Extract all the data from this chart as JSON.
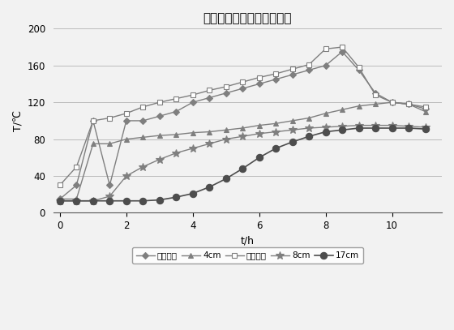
{
  "title": "花旗松不同位置的温度变化",
  "xlabel": "t/h",
  "ylabel": "T/℃",
  "xlim": [
    -0.2,
    11.5
  ],
  "ylim": [
    0,
    200
  ],
  "yticks": [
    0,
    40,
    80,
    120,
    160,
    200
  ],
  "xticks": [
    0,
    2,
    4,
    6,
    8,
    10
  ],
  "series": [
    {
      "label": "环境温度",
      "color": "#7f7f7f",
      "marker": "D",
      "markersize": 4,
      "linewidth": 1.0,
      "x": [
        0,
        0.5,
        1.0,
        1.5,
        2.0,
        2.5,
        3.0,
        3.5,
        4.0,
        4.5,
        5.0,
        5.5,
        6.0,
        6.5,
        7.0,
        7.5,
        8.0,
        8.5,
        9.0,
        9.5,
        10.0,
        10.5,
        11.0
      ],
      "y": [
        15,
        30,
        100,
        30,
        100,
        100,
        105,
        110,
        120,
        125,
        130,
        135,
        140,
        145,
        150,
        155,
        160,
        175,
        155,
        130,
        120,
        118,
        113
      ]
    },
    {
      "label": "4cm",
      "color": "#7f7f7f",
      "marker": "^",
      "markersize": 5,
      "linewidth": 1.0,
      "x": [
        0,
        0.5,
        1.0,
        1.5,
        2.0,
        2.5,
        3.0,
        3.5,
        4.0,
        4.5,
        5.0,
        5.5,
        6.0,
        6.5,
        7.0,
        7.5,
        8.0,
        8.5,
        9.0,
        9.5,
        10.0,
        10.5,
        11.0
      ],
      "y": [
        15,
        15,
        75,
        75,
        80,
        82,
        84,
        85,
        87,
        88,
        90,
        92,
        95,
        97,
        100,
        103,
        108,
        112,
        116,
        118,
        120,
        118,
        110
      ]
    },
    {
      "label": "试材表面",
      "color": "#7f7f7f",
      "marker": "s",
      "markersize": 5,
      "linewidth": 1.0,
      "markerfacecolor": "white",
      "x": [
        0,
        0.5,
        1.0,
        1.5,
        2.0,
        2.5,
        3.0,
        3.5,
        4.0,
        4.5,
        5.0,
        5.5,
        6.0,
        6.5,
        7.0,
        7.5,
        8.0,
        8.5,
        9.0,
        9.5,
        10.0,
        10.5,
        11.0
      ],
      "y": [
        30,
        50,
        100,
        103,
        108,
        115,
        120,
        124,
        128,
        133,
        137,
        142,
        147,
        151,
        156,
        161,
        178,
        180,
        158,
        128,
        120,
        118,
        115
      ]
    },
    {
      "label": "8cm",
      "color": "#7f7f7f",
      "marker": "*",
      "markersize": 7,
      "linewidth": 1.0,
      "x": [
        0,
        0.5,
        1.0,
        1.5,
        2.0,
        2.5,
        3.0,
        3.5,
        4.0,
        4.5,
        5.0,
        5.5,
        6.0,
        6.5,
        7.0,
        7.5,
        8.0,
        8.5,
        9.0,
        9.5,
        10.0,
        10.5,
        11.0
      ],
      "y": [
        13,
        13,
        13,
        18,
        40,
        50,
        58,
        65,
        70,
        75,
        80,
        83,
        86,
        88,
        90,
        92,
        93,
        94,
        95,
        95,
        95,
        94,
        93
      ]
    },
    {
      "label": "17cm",
      "color": "#4d4d4d",
      "marker": "o",
      "markersize": 6,
      "linewidth": 1.2,
      "markerfacecolor": "#4d4d4d",
      "x": [
        0,
        0.5,
        1.0,
        1.5,
        2.0,
        2.5,
        3.0,
        3.5,
        4.0,
        4.5,
        5.0,
        5.5,
        6.0,
        6.5,
        7.0,
        7.5,
        8.0,
        8.5,
        9.0,
        9.5,
        10.0,
        10.5,
        11.0
      ],
      "y": [
        13,
        13,
        13,
        13,
        13,
        13,
        14,
        17,
        21,
        28,
        37,
        48,
        60,
        70,
        77,
        83,
        88,
        90,
        92,
        92,
        92,
        92,
        91
      ]
    }
  ]
}
